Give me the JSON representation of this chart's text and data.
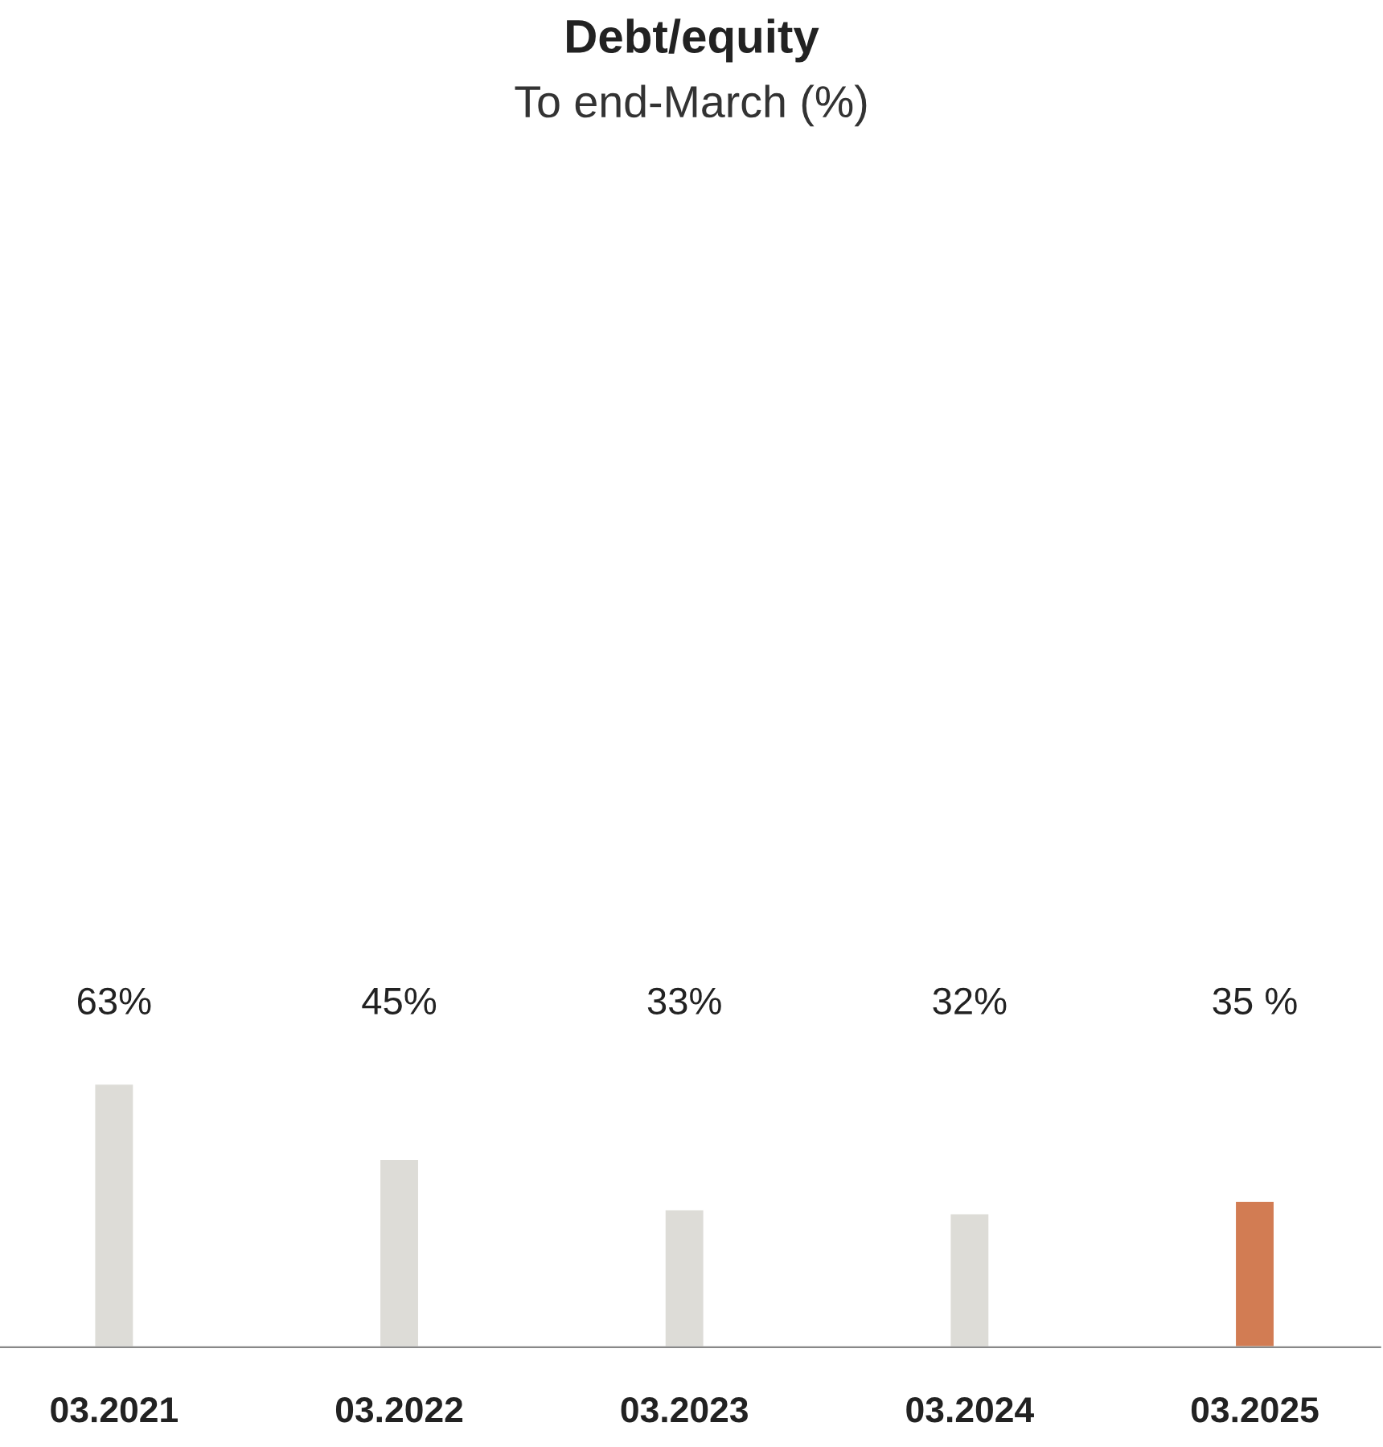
{
  "chart_data": {
    "type": "bar",
    "title": "Debt/equity",
    "subtitle": "To end-March (%)",
    "categories": [
      "03.2021",
      "03.2022",
      "03.2023",
      "03.2024",
      "03.2025"
    ],
    "values": [
      63,
      45,
      33,
      32,
      35
    ],
    "colors": [
      "#dddcd7",
      "#dddcd7",
      "#dddcd7",
      "#dddcd7",
      "#d27c53"
    ],
    "value_labels": [
      "63%",
      "45%",
      "33%",
      "32%",
      "35 %"
    ],
    "grid": false,
    "legend": false
  }
}
